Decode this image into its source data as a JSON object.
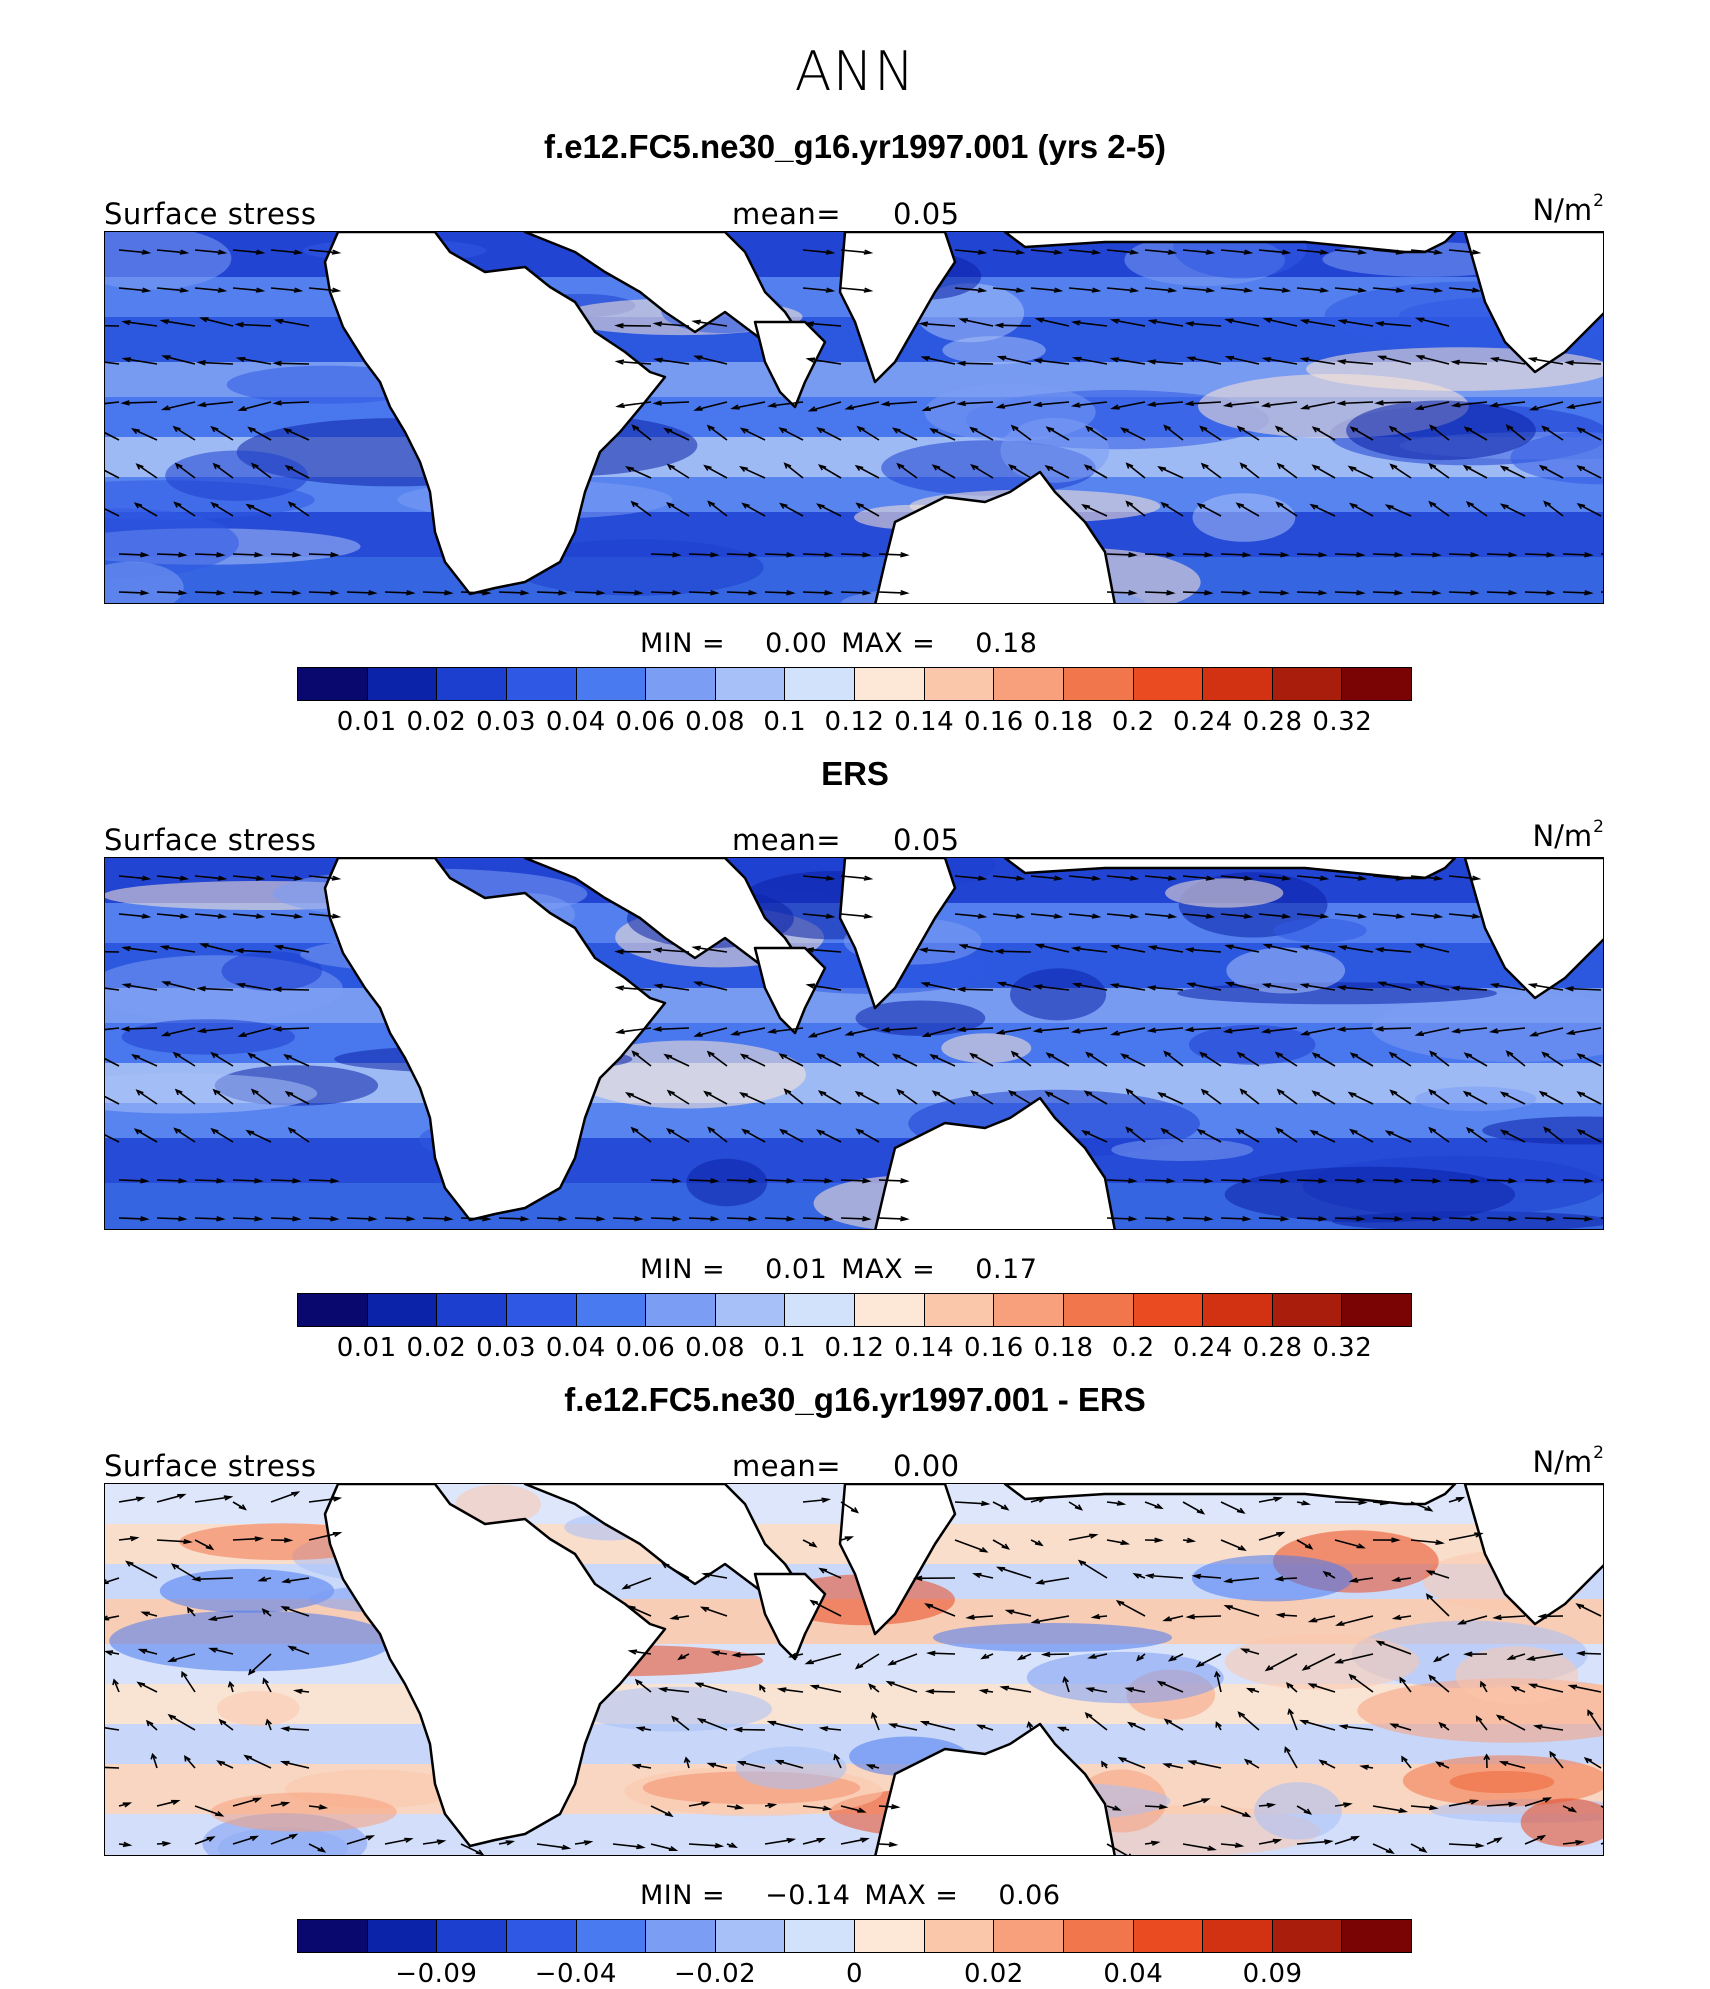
{
  "title": "ANN",
  "panels": [
    {
      "title": "f.e12.FC5.ne30_g16.yr1997.001 (yrs 2-5)",
      "variable": "Surface stress",
      "mean_label": "mean=",
      "mean_value": "0.05",
      "units": "N/m",
      "units_exp": "2",
      "min_label": "MIN =",
      "min_value": "0.00",
      "max_label": "MAX =",
      "max_value": "0.18",
      "colorbar_ticks": [
        "0.01",
        "0.02",
        "0.03",
        "0.04",
        "0.06",
        "0.08",
        "0.1",
        "0.12",
        "0.14",
        "0.16",
        "0.18",
        "0.2",
        "0.24",
        "0.28",
        "0.32"
      ],
      "colorbar_colors": [
        "#08086e",
        "#0b23a8",
        "#1d3fcf",
        "#2f59e4",
        "#4a7af0",
        "#7b9df4",
        "#a7c0f7",
        "#d2e2fb",
        "#fde7d6",
        "#fbc7ab",
        "#f8a07b",
        "#f2764b",
        "#ea4b21",
        "#d33212",
        "#a91d0c",
        "#7a0404"
      ],
      "kind": "full"
    },
    {
      "title": "ERS",
      "variable": "Surface stress",
      "mean_label": "mean=",
      "mean_value": "0.05",
      "units": "N/m",
      "units_exp": "2",
      "min_label": "MIN =",
      "min_value": "0.01",
      "max_label": "MAX =",
      "max_value": "0.17",
      "colorbar_ticks": [
        "0.01",
        "0.02",
        "0.03",
        "0.04",
        "0.06",
        "0.08",
        "0.1",
        "0.12",
        "0.14",
        "0.16",
        "0.18",
        "0.2",
        "0.24",
        "0.28",
        "0.32"
      ],
      "colorbar_colors": [
        "#08086e",
        "#0b23a8",
        "#1d3fcf",
        "#2f59e4",
        "#4a7af0",
        "#7b9df4",
        "#a7c0f7",
        "#d2e2fb",
        "#fde7d6",
        "#fbc7ab",
        "#f8a07b",
        "#f2764b",
        "#ea4b21",
        "#d33212",
        "#a91d0c",
        "#7a0404"
      ],
      "kind": "full"
    },
    {
      "title": "f.e12.FC5.ne30_g16.yr1997.001 - ERS",
      "variable": "Surface stress",
      "mean_label": "mean=",
      "mean_value": "0.00",
      "units": "N/m",
      "units_exp": "2",
      "min_label": "MIN =",
      "min_value": "−0.14",
      "max_label": "MAX =",
      "max_value": "0.06",
      "colorbar_ticks": [
        "−0.09",
        "−0.04",
        "−0.02",
        "0",
        "0.02",
        "0.04",
        "0.09"
      ],
      "colorbar_colors": [
        "#08086e",
        "#0b23a8",
        "#1d3fcf",
        "#2f59e4",
        "#4a7af0",
        "#7b9df4",
        "#a7c0f7",
        "#d2e2fb",
        "#fde7d6",
        "#fbc7ab",
        "#f8a07b",
        "#f2764b",
        "#ea4b21",
        "#d33212",
        "#a91d0c",
        "#7a0404"
      ],
      "kind": "diff"
    }
  ],
  "chart_data": {
    "type": "heatmap",
    "title": "ANN",
    "maps": [
      {
        "title": "f.e12.FC5.ne30_g16.yr1997.001 (yrs 2-5)",
        "variable": "Surface stress",
        "units": "N/m2",
        "mean": 0.05,
        "min": 0.0,
        "max": 0.18,
        "levels": [
          0.01,
          0.02,
          0.03,
          0.04,
          0.06,
          0.08,
          0.1,
          0.12,
          0.14,
          0.16,
          0.18,
          0.2,
          0.24,
          0.28,
          0.32
        ]
      },
      {
        "title": "ERS",
        "variable": "Surface stress",
        "units": "N/m2",
        "mean": 0.05,
        "min": 0.01,
        "max": 0.17,
        "levels": [
          0.01,
          0.02,
          0.03,
          0.04,
          0.06,
          0.08,
          0.1,
          0.12,
          0.14,
          0.16,
          0.18,
          0.2,
          0.24,
          0.28,
          0.32
        ]
      },
      {
        "title": "f.e12.FC5.ne30_g16.yr1997.001 - ERS",
        "variable": "Surface stress",
        "units": "N/m2",
        "mean": 0.0,
        "min": -0.14,
        "max": 0.06,
        "levels": [
          -0.09,
          -0.04,
          -0.02,
          0,
          0.02,
          0.04,
          0.09
        ]
      }
    ]
  }
}
